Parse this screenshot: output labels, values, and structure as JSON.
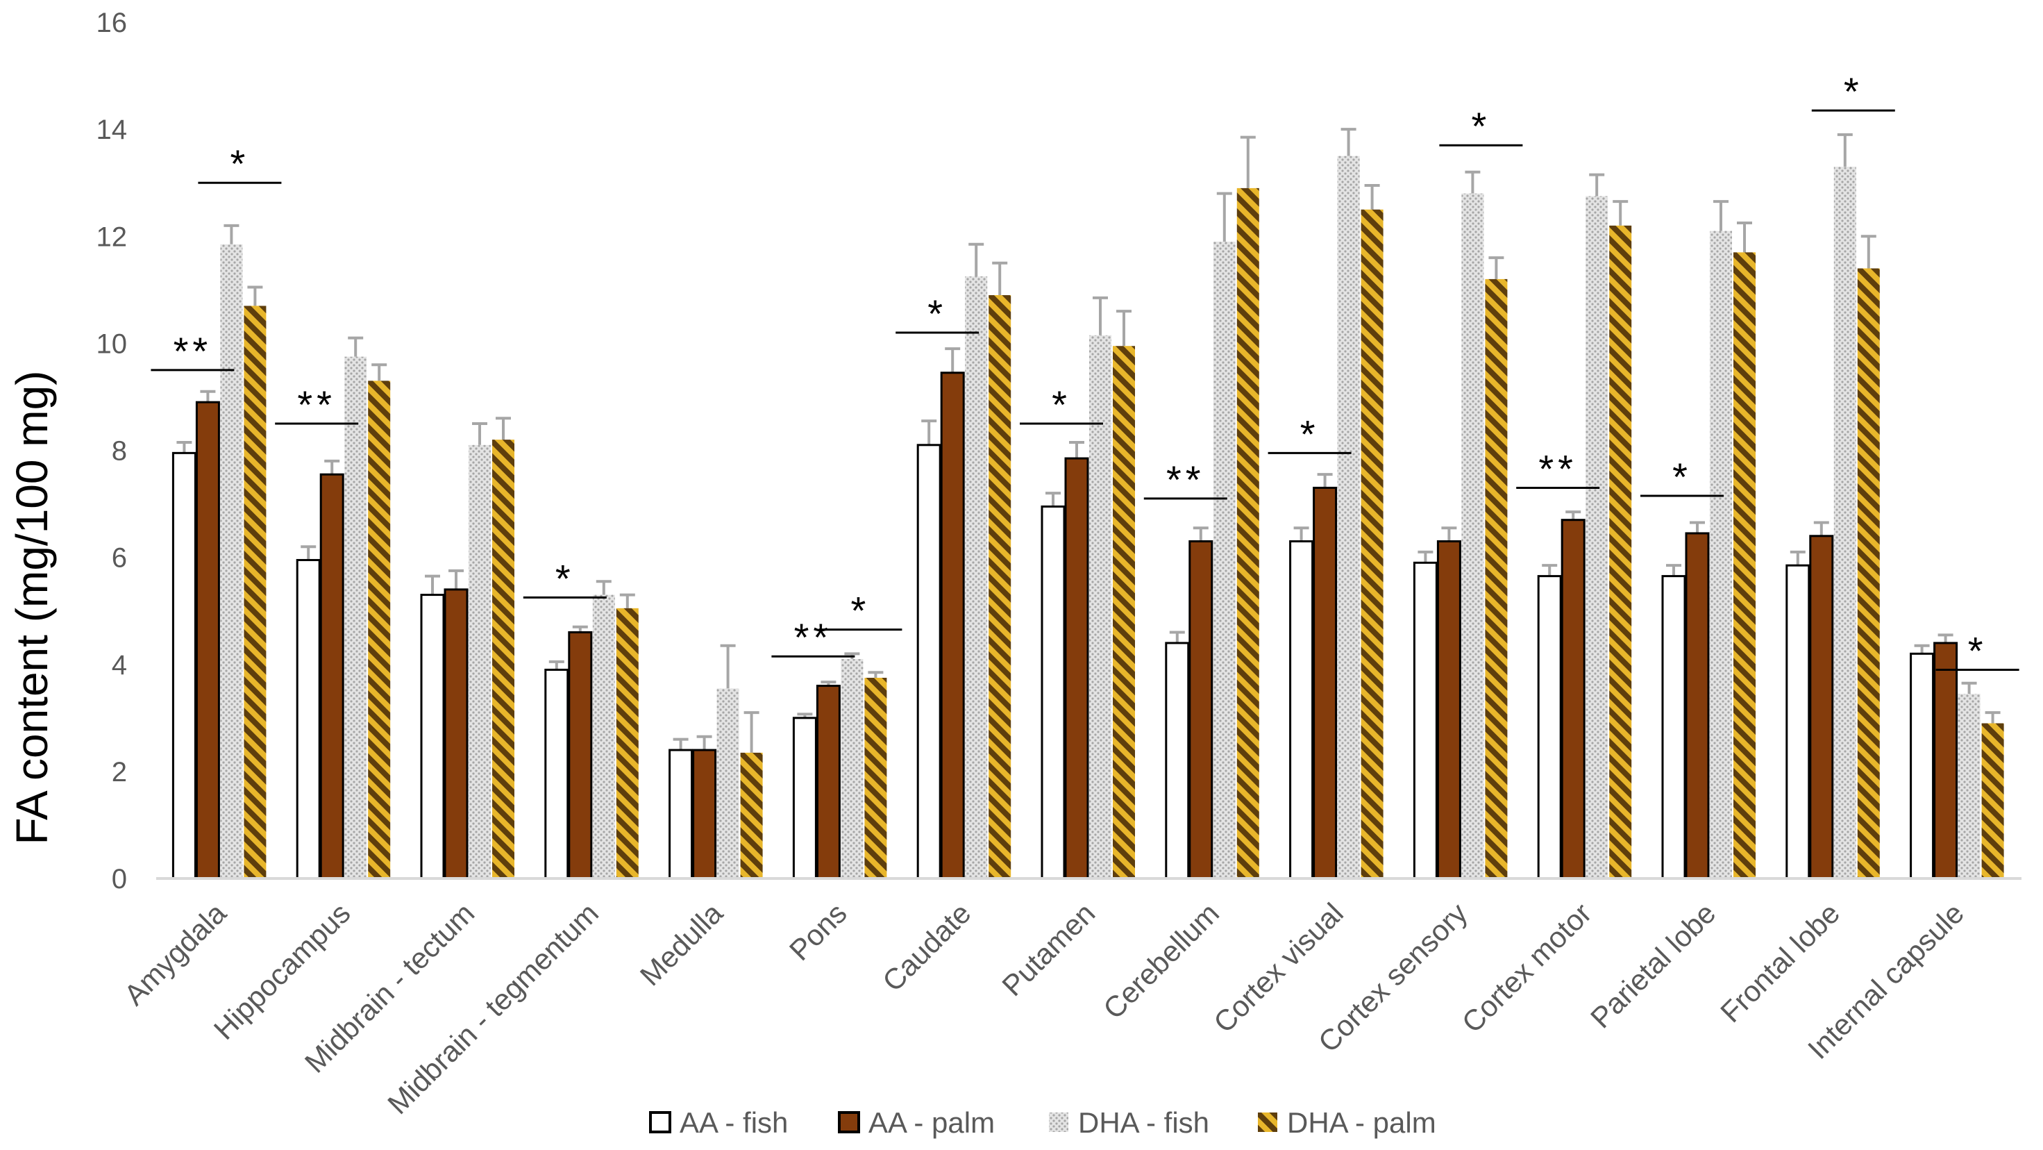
{
  "chart_data": {
    "type": "bar",
    "title": "",
    "xlabel": "",
    "ylabel": "FA content (mg/100 mg)",
    "ylim": [
      0,
      16
    ],
    "yticks": [
      0,
      2,
      4,
      6,
      8,
      10,
      12,
      14,
      16
    ],
    "grid": false,
    "legend_position": "bottom",
    "categories": [
      "Amygdala",
      "Hippocampus",
      "Midbrain - tectum",
      "Midbrain - tegmentum",
      "Medulla",
      "Pons",
      "Caudate",
      "Putamen",
      "Cerebellum",
      "Cortex visual",
      "Cortex sensory",
      "Cortex motor",
      "Parietal lobe",
      "Frontal lobe",
      "Internal capsule"
    ],
    "series": [
      {
        "name": "AA - fish",
        "values": [
          7.95,
          5.95,
          5.3,
          3.9,
          2.4,
          3.0,
          8.1,
          6.95,
          4.4,
          6.3,
          5.9,
          5.65,
          5.65,
          5.85,
          4.2
        ],
        "errors": [
          0.2,
          0.25,
          0.35,
          0.15,
          0.2,
          0.07,
          0.45,
          0.25,
          0.2,
          0.25,
          0.2,
          0.2,
          0.2,
          0.25,
          0.15
        ],
        "color": "#ffffff",
        "pattern": "solid-outline"
      },
      {
        "name": "AA - palm",
        "values": [
          8.9,
          7.55,
          5.4,
          4.6,
          2.4,
          3.6,
          9.45,
          7.85,
          6.3,
          7.3,
          6.3,
          6.7,
          6.45,
          6.4,
          4.4
        ],
        "errors": [
          0.2,
          0.25,
          0.35,
          0.1,
          0.25,
          0.07,
          0.45,
          0.3,
          0.25,
          0.25,
          0.25,
          0.15,
          0.2,
          0.25,
          0.15
        ],
        "color": "#843c0c",
        "pattern": "solid"
      },
      {
        "name": "DHA - fish",
        "values": [
          11.85,
          9.75,
          8.1,
          5.3,
          3.55,
          4.1,
          11.25,
          10.15,
          11.9,
          13.5,
          12.8,
          12.75,
          12.1,
          13.3,
          3.45
        ],
        "errors": [
          0.35,
          0.35,
          0.4,
          0.25,
          0.8,
          0.1,
          0.6,
          0.7,
          0.9,
          0.5,
          0.4,
          0.4,
          0.55,
          0.6,
          0.2
        ],
        "color": "#d0d0d0",
        "pattern": "dotted"
      },
      {
        "name": "DHA - palm",
        "values": [
          10.7,
          9.3,
          8.2,
          5.05,
          2.35,
          3.75,
          10.9,
          9.95,
          12.9,
          12.5,
          11.2,
          12.2,
          11.7,
          11.4,
          2.9
        ],
        "errors": [
          0.35,
          0.3,
          0.4,
          0.25,
          0.75,
          0.1,
          0.6,
          0.65,
          0.95,
          0.45,
          0.4,
          0.45,
          0.55,
          0.6,
          0.2
        ],
        "color": "#5e3e0c",
        "pattern": "diagonal-gold"
      }
    ],
    "significance": [
      {
        "category": "Amygdala",
        "pair": "AA",
        "label": "**",
        "y": 9.5
      },
      {
        "category": "Amygdala",
        "pair": "DHA",
        "label": "*",
        "y": 13.0
      },
      {
        "category": "Hippocampus",
        "pair": "AA",
        "label": "**",
        "y": 8.5
      },
      {
        "category": "Midbrain - tegmentum",
        "pair": "AA",
        "label": "*",
        "y": 5.25
      },
      {
        "category": "Pons",
        "pair": "AA",
        "label": "**",
        "y": 4.15
      },
      {
        "category": "Pons",
        "pair": "DHA",
        "label": "*",
        "y": 4.65
      },
      {
        "category": "Caudate",
        "pair": "AA",
        "label": "*",
        "y": 10.2
      },
      {
        "category": "Putamen",
        "pair": "AA",
        "label": "*",
        "y": 8.5
      },
      {
        "category": "Cerebellum",
        "pair": "AA",
        "label": "**",
        "y": 7.1
      },
      {
        "category": "Cortex visual",
        "pair": "AA",
        "label": "*",
        "y": 7.95
      },
      {
        "category": "Cortex sensory",
        "pair": "DHA",
        "label": "*",
        "y": 13.7
      },
      {
        "category": "Cortex motor",
        "pair": "AA",
        "label": "**",
        "y": 7.3
      },
      {
        "category": "Parietal lobe",
        "pair": "AA",
        "label": "*",
        "y": 7.15
      },
      {
        "category": "Frontal lobe",
        "pair": "DHA",
        "label": "*",
        "y": 14.35
      },
      {
        "category": "Internal capsule",
        "pair": "DHA",
        "label": "*",
        "y": 3.9
      }
    ]
  }
}
